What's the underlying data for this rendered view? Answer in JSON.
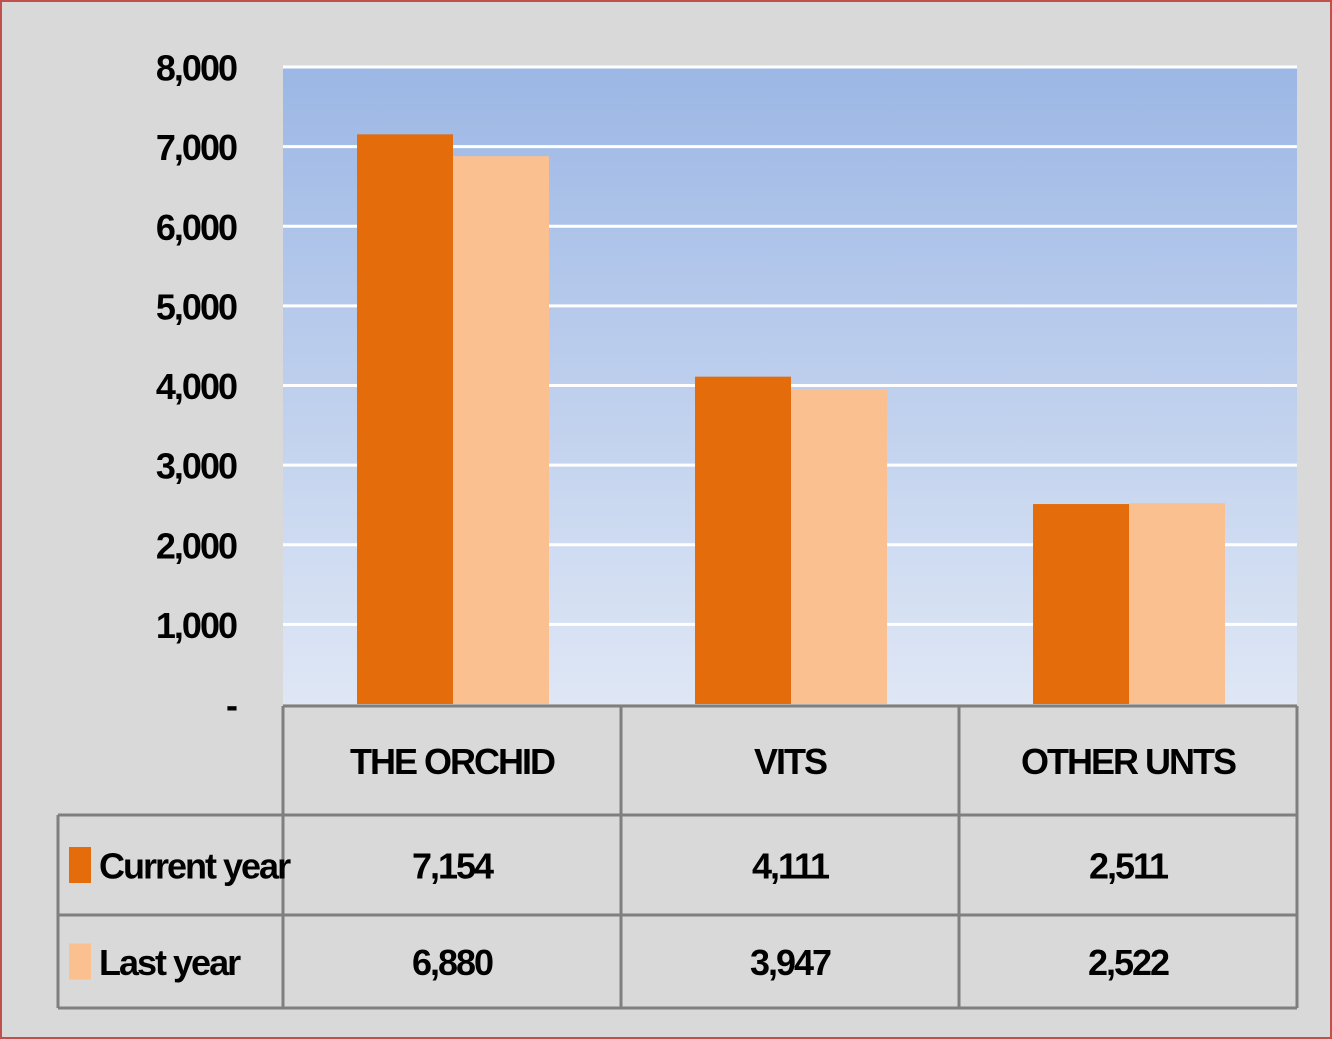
{
  "chart_data": {
    "type": "bar",
    "categories": [
      "THE ORCHID",
      "VITS",
      "OTHER UNTS"
    ],
    "series": [
      {
        "name": "Current year",
        "color": "#e46c0a",
        "values": [
          7154,
          4111,
          2511
        ],
        "value_labels": [
          "7,154",
          "4,111",
          "2,511"
        ]
      },
      {
        "name": "Last year",
        "color": "#fac090",
        "values": [
          6880,
          3947,
          2522
        ],
        "value_labels": [
          "6,880",
          "3,947",
          "2,522"
        ]
      }
    ],
    "ylim": [
      0,
      8000
    ],
    "yticks": [
      {
        "value": 0,
        "label": "-"
      },
      {
        "value": 1000,
        "label": "1,000"
      },
      {
        "value": 2000,
        "label": "2,000"
      },
      {
        "value": 3000,
        "label": "3,000"
      },
      {
        "value": 4000,
        "label": "4,000"
      },
      {
        "value": 5000,
        "label": "5,000"
      },
      {
        "value": 6000,
        "label": "6,000"
      },
      {
        "value": 7000,
        "label": "7,000"
      },
      {
        "value": 8000,
        "label": "8,000"
      }
    ],
    "grid": true
  }
}
